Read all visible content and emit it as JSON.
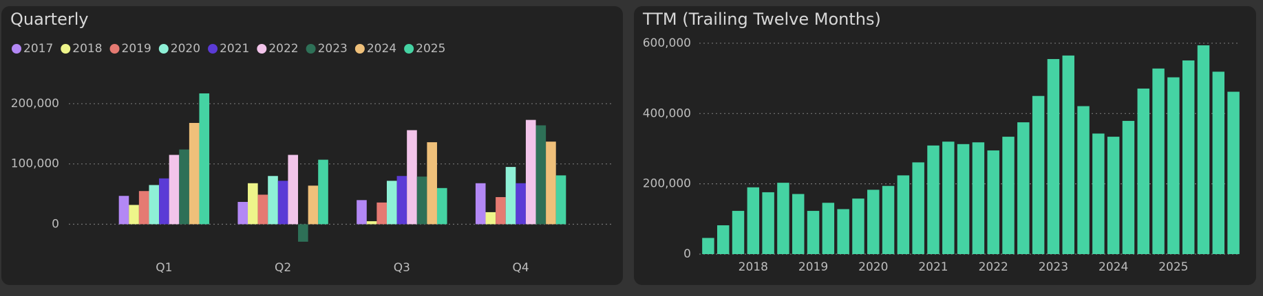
{
  "chart_data": [
    {
      "type": "grouped_bar",
      "title": "Quarterly",
      "categories": [
        "Q1",
        "Q2",
        "Q3",
        "Q4"
      ],
      "series": [
        {
          "name": "2017",
          "color": "#b388f5",
          "values": [
            47000,
            37000,
            40000,
            68000
          ]
        },
        {
          "name": "2018",
          "color": "#eef58a",
          "values": [
            32000,
            68000,
            5000,
            20000
          ]
        },
        {
          "name": "2019",
          "color": "#e57a72",
          "values": [
            55000,
            49000,
            36000,
            45000
          ]
        },
        {
          "name": "2020",
          "color": "#8ef0d6",
          "values": [
            65000,
            80000,
            72000,
            95000
          ]
        },
        {
          "name": "2021",
          "color": "#5b3bd6",
          "values": [
            76000,
            72000,
            80000,
            68000
          ]
        },
        {
          "name": "2022",
          "color": "#f2c4ea",
          "values": [
            115000,
            115000,
            156000,
            173000
          ]
        },
        {
          "name": "2023",
          "color": "#2e7057",
          "values": [
            124000,
            -29000,
            79000,
            164000
          ]
        },
        {
          "name": "2024",
          "color": "#efc07a",
          "values": [
            168000,
            64000,
            136000,
            137000
          ]
        },
        {
          "name": "2025",
          "color": "#45d3a3",
          "values": [
            217000,
            107000,
            60000,
            81000
          ]
        }
      ],
      "ylim": [
        -40000,
        240000
      ],
      "yticks": [
        0,
        {
          "value": 100000,
          "label": "100,000"
        },
        {
          "value": 200000,
          "label": "200,000"
        }
      ],
      "grid": true,
      "legend": "top-left"
    },
    {
      "type": "bar",
      "title": "TTM (Trailing Twelve Months)",
      "categories": [
        null,
        null,
        null,
        "2018",
        null,
        null,
        null,
        "2019",
        null,
        null,
        null,
        "2020",
        null,
        null,
        null,
        "2021",
        null,
        null,
        null,
        "2022",
        null,
        null,
        null,
        "2023",
        null,
        null,
        null,
        "2024",
        null,
        null,
        null,
        "2025",
        null,
        null,
        null,
        null
      ],
      "values": [
        46000,
        82000,
        123000,
        190000,
        176000,
        203000,
        171000,
        123000,
        146000,
        128000,
        158000,
        183000,
        194000,
        224000,
        261000,
        309000,
        320000,
        313000,
        318000,
        295000,
        334000,
        375000,
        450000,
        555000,
        565000,
        421000,
        343000,
        334000,
        379000,
        471000,
        528000,
        503000,
        551000,
        594000,
        519000,
        462000
      ],
      "color": "#45d3a3",
      "ylim": [
        0,
        620000
      ],
      "yticks": [
        0,
        {
          "value": 200000,
          "label": "200,000"
        },
        {
          "value": 400000,
          "label": "400,000"
        },
        {
          "value": 600000,
          "label": "600,000"
        }
      ],
      "grid": true
    }
  ]
}
